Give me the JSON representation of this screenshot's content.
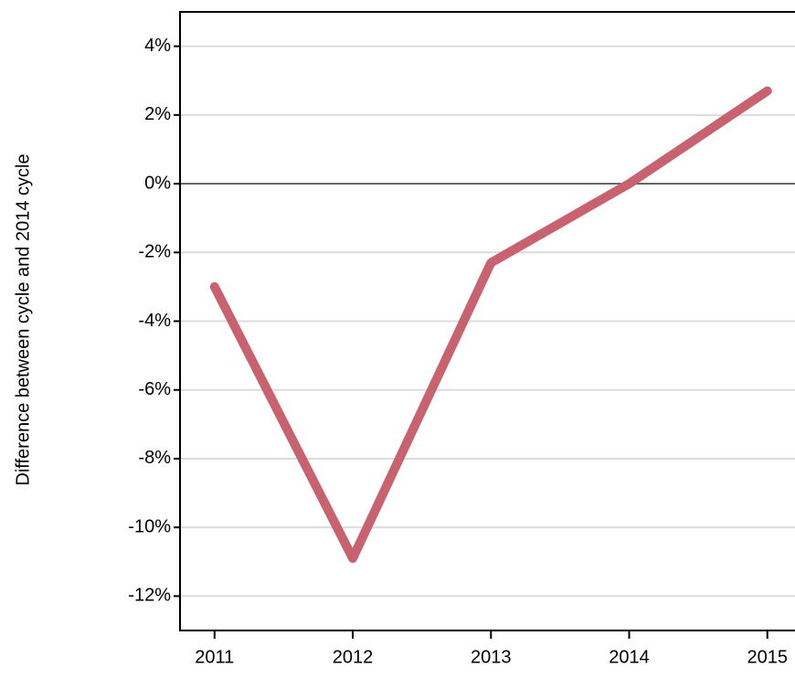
{
  "chart_data": {
    "type": "line",
    "y_label": "Difference between cycle and 2014 cycle",
    "x": [
      2011,
      2012,
      2013,
      2014,
      2015
    ],
    "series": [
      {
        "color": "#c8626f",
        "values": [
          -3.0,
          -10.9,
          -2.3,
          0,
          2.7
        ]
      }
    ],
    "xlim": [
      2010.75,
      2015.2
    ],
    "xticks": [
      2011,
      2012,
      2013,
      2014,
      2015
    ],
    "ylim": [
      -13,
      5
    ],
    "yticks": [
      {
        "value": -12,
        "label": "-12%"
      },
      {
        "value": -10,
        "label": "-10%"
      },
      {
        "value": -8,
        "label": "-8%"
      },
      {
        "value": -6,
        "label": "-6%"
      },
      {
        "value": -4,
        "label": "-4%"
      },
      {
        "value": -2,
        "label": "-2%"
      },
      {
        "value": 0,
        "label": "0%"
      },
      {
        "value": 2,
        "label": "2%"
      },
      {
        "value": 4,
        "label": "4%"
      }
    ],
    "grid": true,
    "zero_line": true
  }
}
